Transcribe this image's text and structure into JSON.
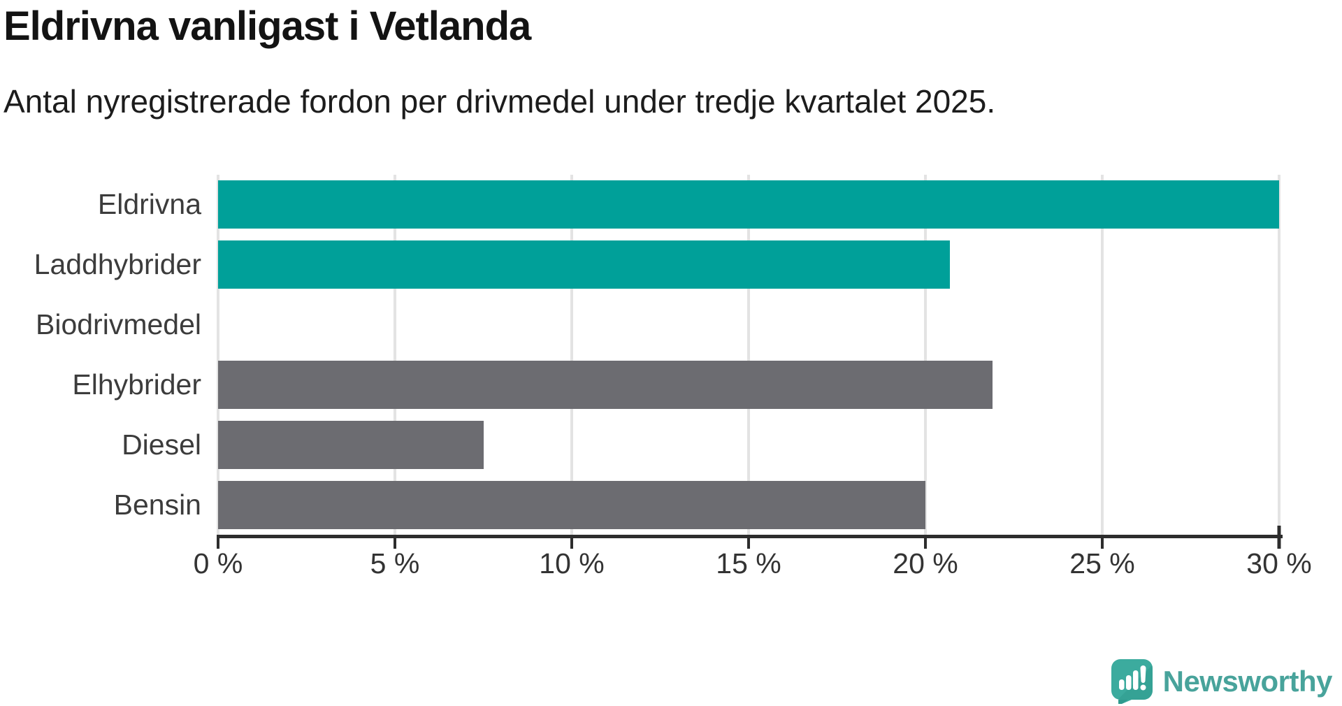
{
  "header": {
    "title": "Eldrivna vanligast i Vetlanda",
    "subtitle": "Antal nyregistrerade fordon per drivmedel under tredje kvartalet 2025."
  },
  "chart_data": {
    "type": "bar",
    "orientation": "horizontal",
    "title": "Eldrivna vanligast i Vetlanda",
    "subtitle": "Antal nyregistrerade fordon per drivmedel under tredje kvartalet 2025.",
    "categories": [
      "Eldrivna",
      "Laddhybrider",
      "Biodrivmedel",
      "Elhybrider",
      "Diesel",
      "Bensin"
    ],
    "values": [
      30.0,
      20.7,
      0,
      21.9,
      7.5,
      20.0
    ],
    "unit": "%",
    "xlabel": "",
    "ylabel": "",
    "xlim": [
      0,
      30
    ],
    "grid": true,
    "ticks": [
      {
        "value": 0,
        "label": "0 %"
      },
      {
        "value": 5,
        "label": "5 %"
      },
      {
        "value": 10,
        "label": "10 %"
      },
      {
        "value": 15,
        "label": "15 %"
      },
      {
        "value": 20,
        "label": "20 %"
      },
      {
        "value": 25,
        "label": "25 %"
      },
      {
        "value": 30,
        "label": "30 %"
      }
    ],
    "bar_colors": [
      "#00a099",
      "#00a099",
      "#6c6c71",
      "#6c6c71",
      "#6c6c71",
      "#6c6c71"
    ],
    "colors": {
      "highlight": "#00a099",
      "default": "#6c6c71",
      "gridline": "#e3e3e3",
      "axis": "#2d2d2d",
      "label": "#3c3c3c"
    }
  },
  "footer": {
    "brand": "Newsworthy",
    "brand_color": "#48a39b",
    "logo_teal_light": "#43b0a2",
    "logo_teal_dark": "#2f9a8e"
  }
}
